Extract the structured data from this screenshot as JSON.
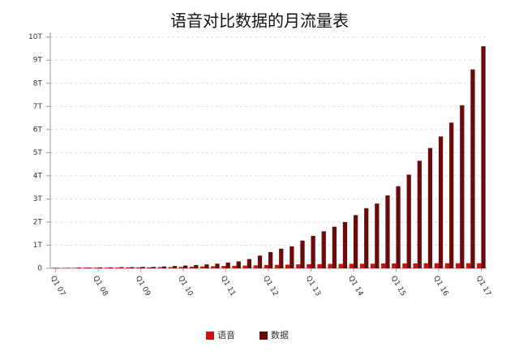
{
  "chart_data": {
    "type": "bar",
    "title": "语音对比数据的月流量表",
    "categories": [
      "Q1 07",
      null,
      null,
      null,
      "Q1 08",
      null,
      null,
      null,
      "Q1 09",
      null,
      null,
      null,
      "Q1 10",
      null,
      null,
      null,
      "Q1 11",
      null,
      null,
      null,
      "Q1 12",
      null,
      null,
      null,
      "Q1 13",
      null,
      null,
      null,
      "Q1 14",
      null,
      null,
      null,
      "Q1 15",
      null,
      null,
      null,
      "Q1 16",
      null,
      null,
      null,
      "Q1 17"
    ],
    "series": [
      {
        "name": "语音",
        "color": "#cc1111",
        "values": [
          0.02,
          0.02,
          0.02,
          0.03,
          0.03,
          0.03,
          0.03,
          0.04,
          0.04,
          0.04,
          0.05,
          0.05,
          0.06,
          0.07,
          0.08,
          0.09,
          0.1,
          0.11,
          0.12,
          0.13,
          0.14,
          0.15,
          0.16,
          0.17,
          0.18,
          0.18,
          0.19,
          0.19,
          0.2,
          0.2,
          0.2,
          0.21,
          0.21,
          0.21,
          0.21,
          0.22,
          0.22,
          0.22,
          0.22,
          0.22,
          0.22
        ]
      },
      {
        "name": "数据",
        "color": "#6b0a0a",
        "values": [
          0.02,
          0.02,
          0.03,
          0.03,
          0.04,
          0.04,
          0.05,
          0.05,
          0.06,
          0.06,
          0.08,
          0.1,
          0.12,
          0.14,
          0.17,
          0.2,
          0.25,
          0.3,
          0.4,
          0.55,
          0.7,
          0.85,
          0.95,
          1.2,
          1.4,
          1.6,
          1.8,
          2.0,
          2.3,
          2.6,
          2.8,
          3.15,
          3.55,
          4.05,
          4.65,
          5.2,
          5.7,
          6.3,
          7.05,
          8.6,
          9.6
        ]
      }
    ],
    "ylim": [
      0,
      10.2
    ],
    "yticks": [
      0,
      {
        "value": 1,
        "label": "1T"
      },
      {
        "value": 2,
        "label": "2T"
      },
      {
        "value": 3,
        "label": "3T"
      },
      {
        "value": 4,
        "label": "4T"
      },
      {
        "value": 5,
        "label": "5T"
      },
      {
        "value": 6,
        "label": "6T"
      },
      {
        "value": 7,
        "label": "7T"
      },
      {
        "value": 8,
        "label": "8T"
      },
      {
        "value": 9,
        "label": "9T"
      },
      {
        "value": 10,
        "label": "10T"
      }
    ],
    "grid": true,
    "legend": "bottom"
  }
}
